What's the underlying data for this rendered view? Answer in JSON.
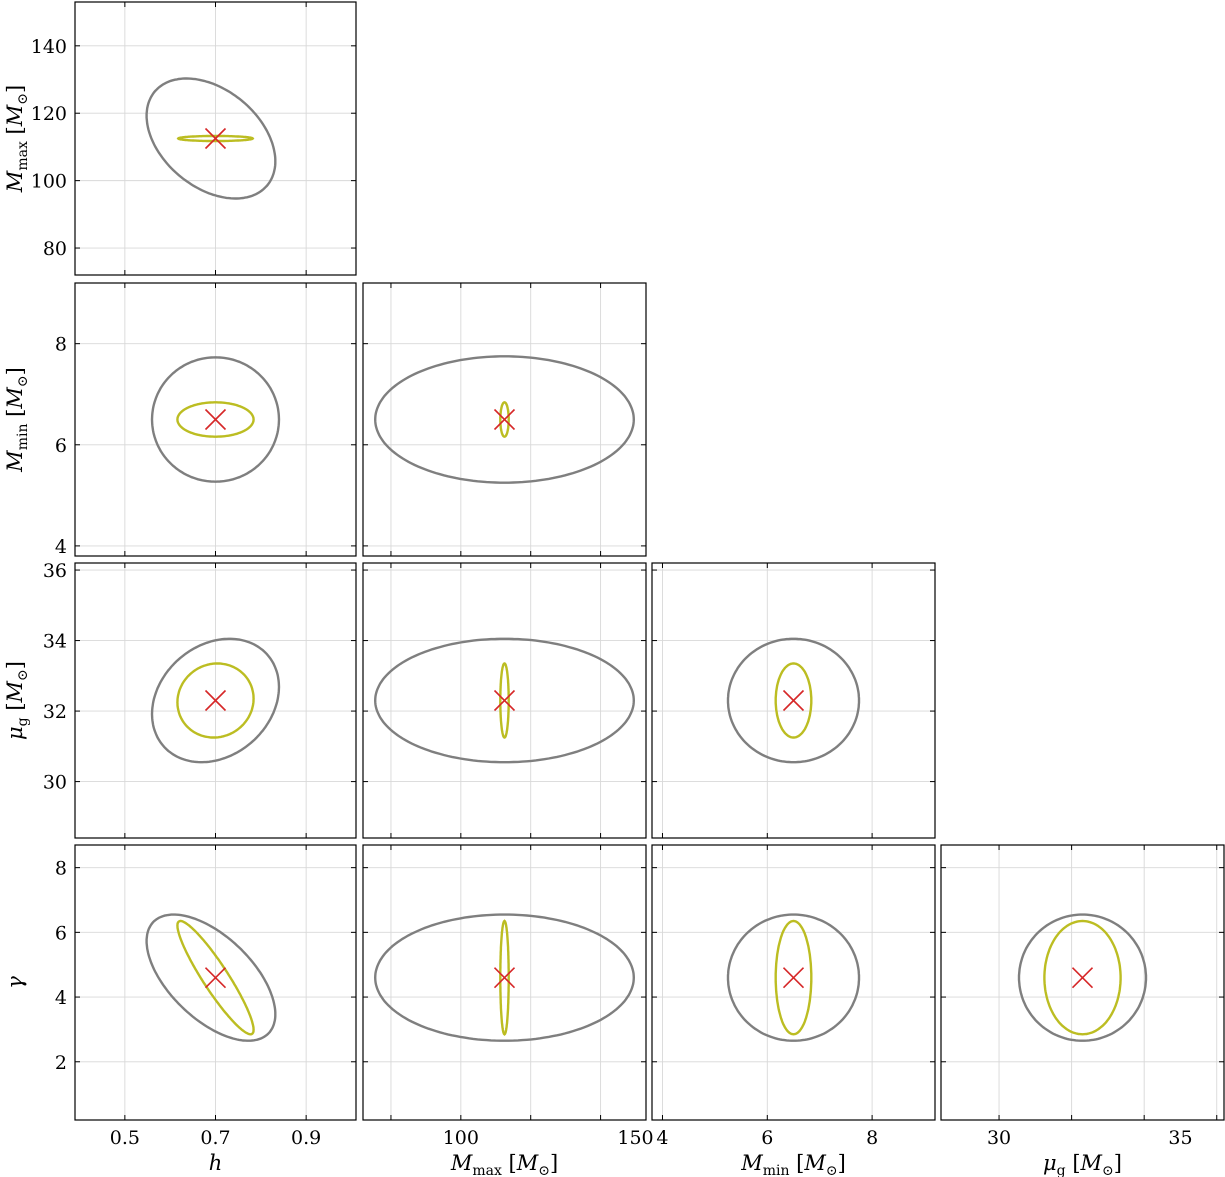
{
  "chart_data": {
    "type": "corner",
    "grid": true,
    "colors": {
      "outer": "#7f7f7f",
      "inner": "#bcbd22",
      "marker": "#d62728"
    },
    "truth": {
      "h": 0.7,
      "M_max": 112.5,
      "M_min": 6.5,
      "mu_g": 32.3,
      "gamma": 4.6
    },
    "params": [
      {
        "key": "h",
        "label": "h",
        "lim": [
          0.39,
          1.01
        ],
        "ticks": [
          0.5,
          0.7,
          0.9
        ],
        "tick_labels": [
          "0.5",
          "0.7",
          "0.9"
        ]
      },
      {
        "key": "M_max",
        "label": "M_max [M_⊙]",
        "lim": [
          72,
          153
        ],
        "ticks": [
          80,
          100,
          120,
          140
        ],
        "tick_labels": [
          "80",
          "100",
          "120",
          "140"
        ]
      },
      {
        "key": "M_min",
        "label": "M_min [M_⊙]",
        "lim": [
          3.8,
          9.2
        ],
        "ticks": [
          4,
          6,
          8
        ],
        "tick_labels": [
          "4",
          "6",
          "8"
        ]
      },
      {
        "key": "mu_g",
        "label": "μ_g [M_⊙]",
        "lim": [
          28.4,
          36.2
        ],
        "ticks": [
          30,
          32,
          34,
          36
        ],
        "tick_labels": [
          "30",
          "32",
          "34",
          "36"
        ]
      },
      {
        "key": "gamma",
        "label": "γ",
        "lim": [
          0.2,
          8.7
        ],
        "ticks": [
          2,
          4,
          6,
          8
        ],
        "tick_labels": [
          "2",
          "4",
          "6",
          "8"
        ]
      }
    ],
    "x_axis_ticks": {
      "h": {
        "ticks": [
          0.5,
          0.7,
          0.9
        ],
        "tick_labels": [
          "0.5",
          "0.7",
          "0.9"
        ]
      },
      "M_max": {
        "ticks": [
          100,
          150
        ],
        "tick_labels": [
          "100",
          "150"
        ]
      },
      "M_min": {
        "ticks": [
          4,
          6,
          8
        ],
        "tick_labels": [
          "4",
          "6",
          "8"
        ]
      },
      "mu_g": {
        "ticks": [
          30,
          35
        ],
        "tick_labels": [
          "30",
          "35"
        ]
      }
    },
    "panels": [
      {
        "x": "h",
        "y": "M_max",
        "outer": {
          "center": [
            0.69,
            112.5
          ],
          "sx": 0.142,
          "sy": 17.8,
          "rho": -0.38
        },
        "inner": {
          "center": [
            0.7,
            112.5
          ],
          "sx": 0.082,
          "sy": 0.75,
          "rho": 0.0
        }
      },
      {
        "x": "h",
        "y": "M_min",
        "outer": {
          "center": [
            0.7,
            6.5
          ],
          "sx": 0.14,
          "sy": 1.23,
          "rho": 0.0
        },
        "inner": {
          "center": [
            0.7,
            6.5
          ],
          "sx": 0.084,
          "sy": 0.34,
          "rho": 0.0
        }
      },
      {
        "x": "M_max",
        "y": "M_min",
        "outer": {
          "center": [
            112.5,
            6.5
          ],
          "sx": 37.0,
          "sy": 1.25,
          "rho": 0.0
        },
        "inner": {
          "center": [
            112.5,
            6.5
          ],
          "sx": 1.2,
          "sy": 0.34,
          "rho": 0.0
        }
      },
      {
        "x": "h",
        "y": "mu_g",
        "outer": {
          "center": [
            0.7,
            32.3
          ],
          "sx": 0.14,
          "sy": 1.75,
          "rho": 0.22
        },
        "inner": {
          "center": [
            0.7,
            32.3
          ],
          "sx": 0.084,
          "sy": 1.05,
          "rho": 0.05
        }
      },
      {
        "x": "M_max",
        "y": "mu_g",
        "outer": {
          "center": [
            112.5,
            32.3
          ],
          "sx": 37.0,
          "sy": 1.75,
          "rho": 0.0
        },
        "inner": {
          "center": [
            112.5,
            32.3
          ],
          "sx": 1.2,
          "sy": 1.05,
          "rho": 0.0
        }
      },
      {
        "x": "M_min",
        "y": "mu_g",
        "outer": {
          "center": [
            6.5,
            32.3
          ],
          "sx": 1.25,
          "sy": 1.75,
          "rho": 0.0
        },
        "inner": {
          "center": [
            6.5,
            32.3
          ],
          "sx": 0.34,
          "sy": 1.05,
          "rho": 0.0
        }
      },
      {
        "x": "h",
        "y": "gamma",
        "outer": {
          "center": [
            0.69,
            4.6
          ],
          "sx": 0.142,
          "sy": 1.95,
          "rho": -0.58
        },
        "inner": {
          "center": [
            0.7,
            4.6
          ],
          "sx": 0.084,
          "sy": 1.75,
          "rho": -0.92
        }
      },
      {
        "x": "M_max",
        "y": "gamma",
        "outer": {
          "center": [
            112.5,
            4.6
          ],
          "sx": 37.0,
          "sy": 1.95,
          "rho": 0.0
        },
        "inner": {
          "center": [
            112.5,
            4.6
          ],
          "sx": 1.2,
          "sy": 1.75,
          "rho": 0.0
        }
      },
      {
        "x": "M_min",
        "y": "gamma",
        "outer": {
          "center": [
            6.5,
            4.6
          ],
          "sx": 1.25,
          "sy": 1.95,
          "rho": 0.0
        },
        "inner": {
          "center": [
            6.5,
            4.6
          ],
          "sx": 0.34,
          "sy": 1.75,
          "rho": 0.0
        }
      },
      {
        "x": "mu_g",
        "y": "gamma",
        "outer": {
          "center": [
            32.3,
            4.6
          ],
          "sx": 1.75,
          "sy": 1.95,
          "rho": 0.0
        },
        "inner": {
          "center": [
            32.3,
            4.6
          ],
          "sx": 1.05,
          "sy": 1.75,
          "rho": 0.0
        }
      }
    ]
  }
}
